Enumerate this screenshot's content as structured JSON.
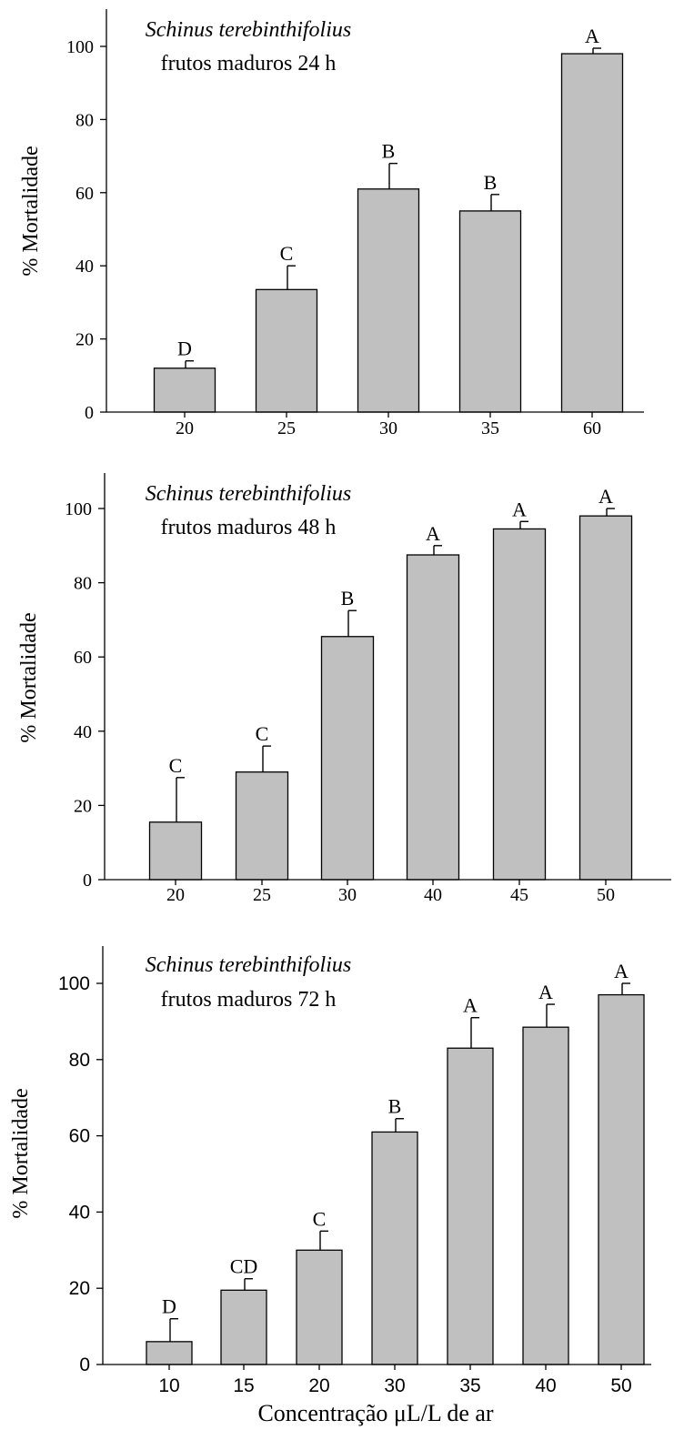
{
  "chart_data": [
    {
      "type": "bar",
      "title_line1": "Schinus terebinthifolius",
      "title_line2": "frutos maduros 24 h",
      "ylabel": "% Mortalidade",
      "xlabel": "",
      "ylim": [
        0,
        110
      ],
      "yticks": [
        0,
        20,
        40,
        60,
        80,
        100
      ],
      "categories": [
        "20",
        "25",
        "30",
        "35",
        "60"
      ],
      "values": [
        12,
        33.5,
        61,
        55,
        98
      ],
      "errors": [
        2,
        6.5,
        7,
        4.5,
        1.5
      ],
      "letters": [
        "D",
        "C",
        "B",
        "B",
        "A"
      ],
      "bar_color": "#c0c0c0",
      "grid": false
    },
    {
      "type": "bar",
      "title_line1": "Schinus terebinthifolius",
      "title_line2": "frutos maduros 48 h",
      "ylabel": "% Mortalidade",
      "xlabel": "",
      "ylim": [
        0,
        110
      ],
      "yticks": [
        0,
        20,
        40,
        60,
        80,
        100
      ],
      "categories": [
        "20",
        "25",
        "30",
        "40",
        "45",
        "50"
      ],
      "values": [
        15.5,
        29,
        65.5,
        87.5,
        94.5,
        98
      ],
      "errors": [
        12,
        7,
        7,
        2.5,
        2,
        2
      ],
      "letters": [
        "C",
        "C",
        "B",
        "A",
        "A",
        "A"
      ],
      "bar_color": "#c0c0c0",
      "grid": false
    },
    {
      "type": "bar",
      "title_line1": "Schinus terebinthifolius",
      "title_line2": "frutos maduros 72 h",
      "ylabel": "% Mortalidade",
      "xlabel": "Concentração μL/L de ar",
      "ylim": [
        0,
        110
      ],
      "yticks": [
        0,
        20,
        40,
        60,
        80,
        100
      ],
      "categories": [
        "10",
        "15",
        "20",
        "30",
        "35",
        "40",
        "50"
      ],
      "values": [
        6,
        19.5,
        30,
        61,
        83,
        88.5,
        97
      ],
      "errors": [
        6,
        3,
        5,
        3.5,
        8,
        6,
        3
      ],
      "letters": [
        "D",
        "CD",
        "C",
        "B",
        "A",
        "A",
        "A"
      ],
      "bar_color": "#c0c0c0",
      "grid": false
    }
  ]
}
